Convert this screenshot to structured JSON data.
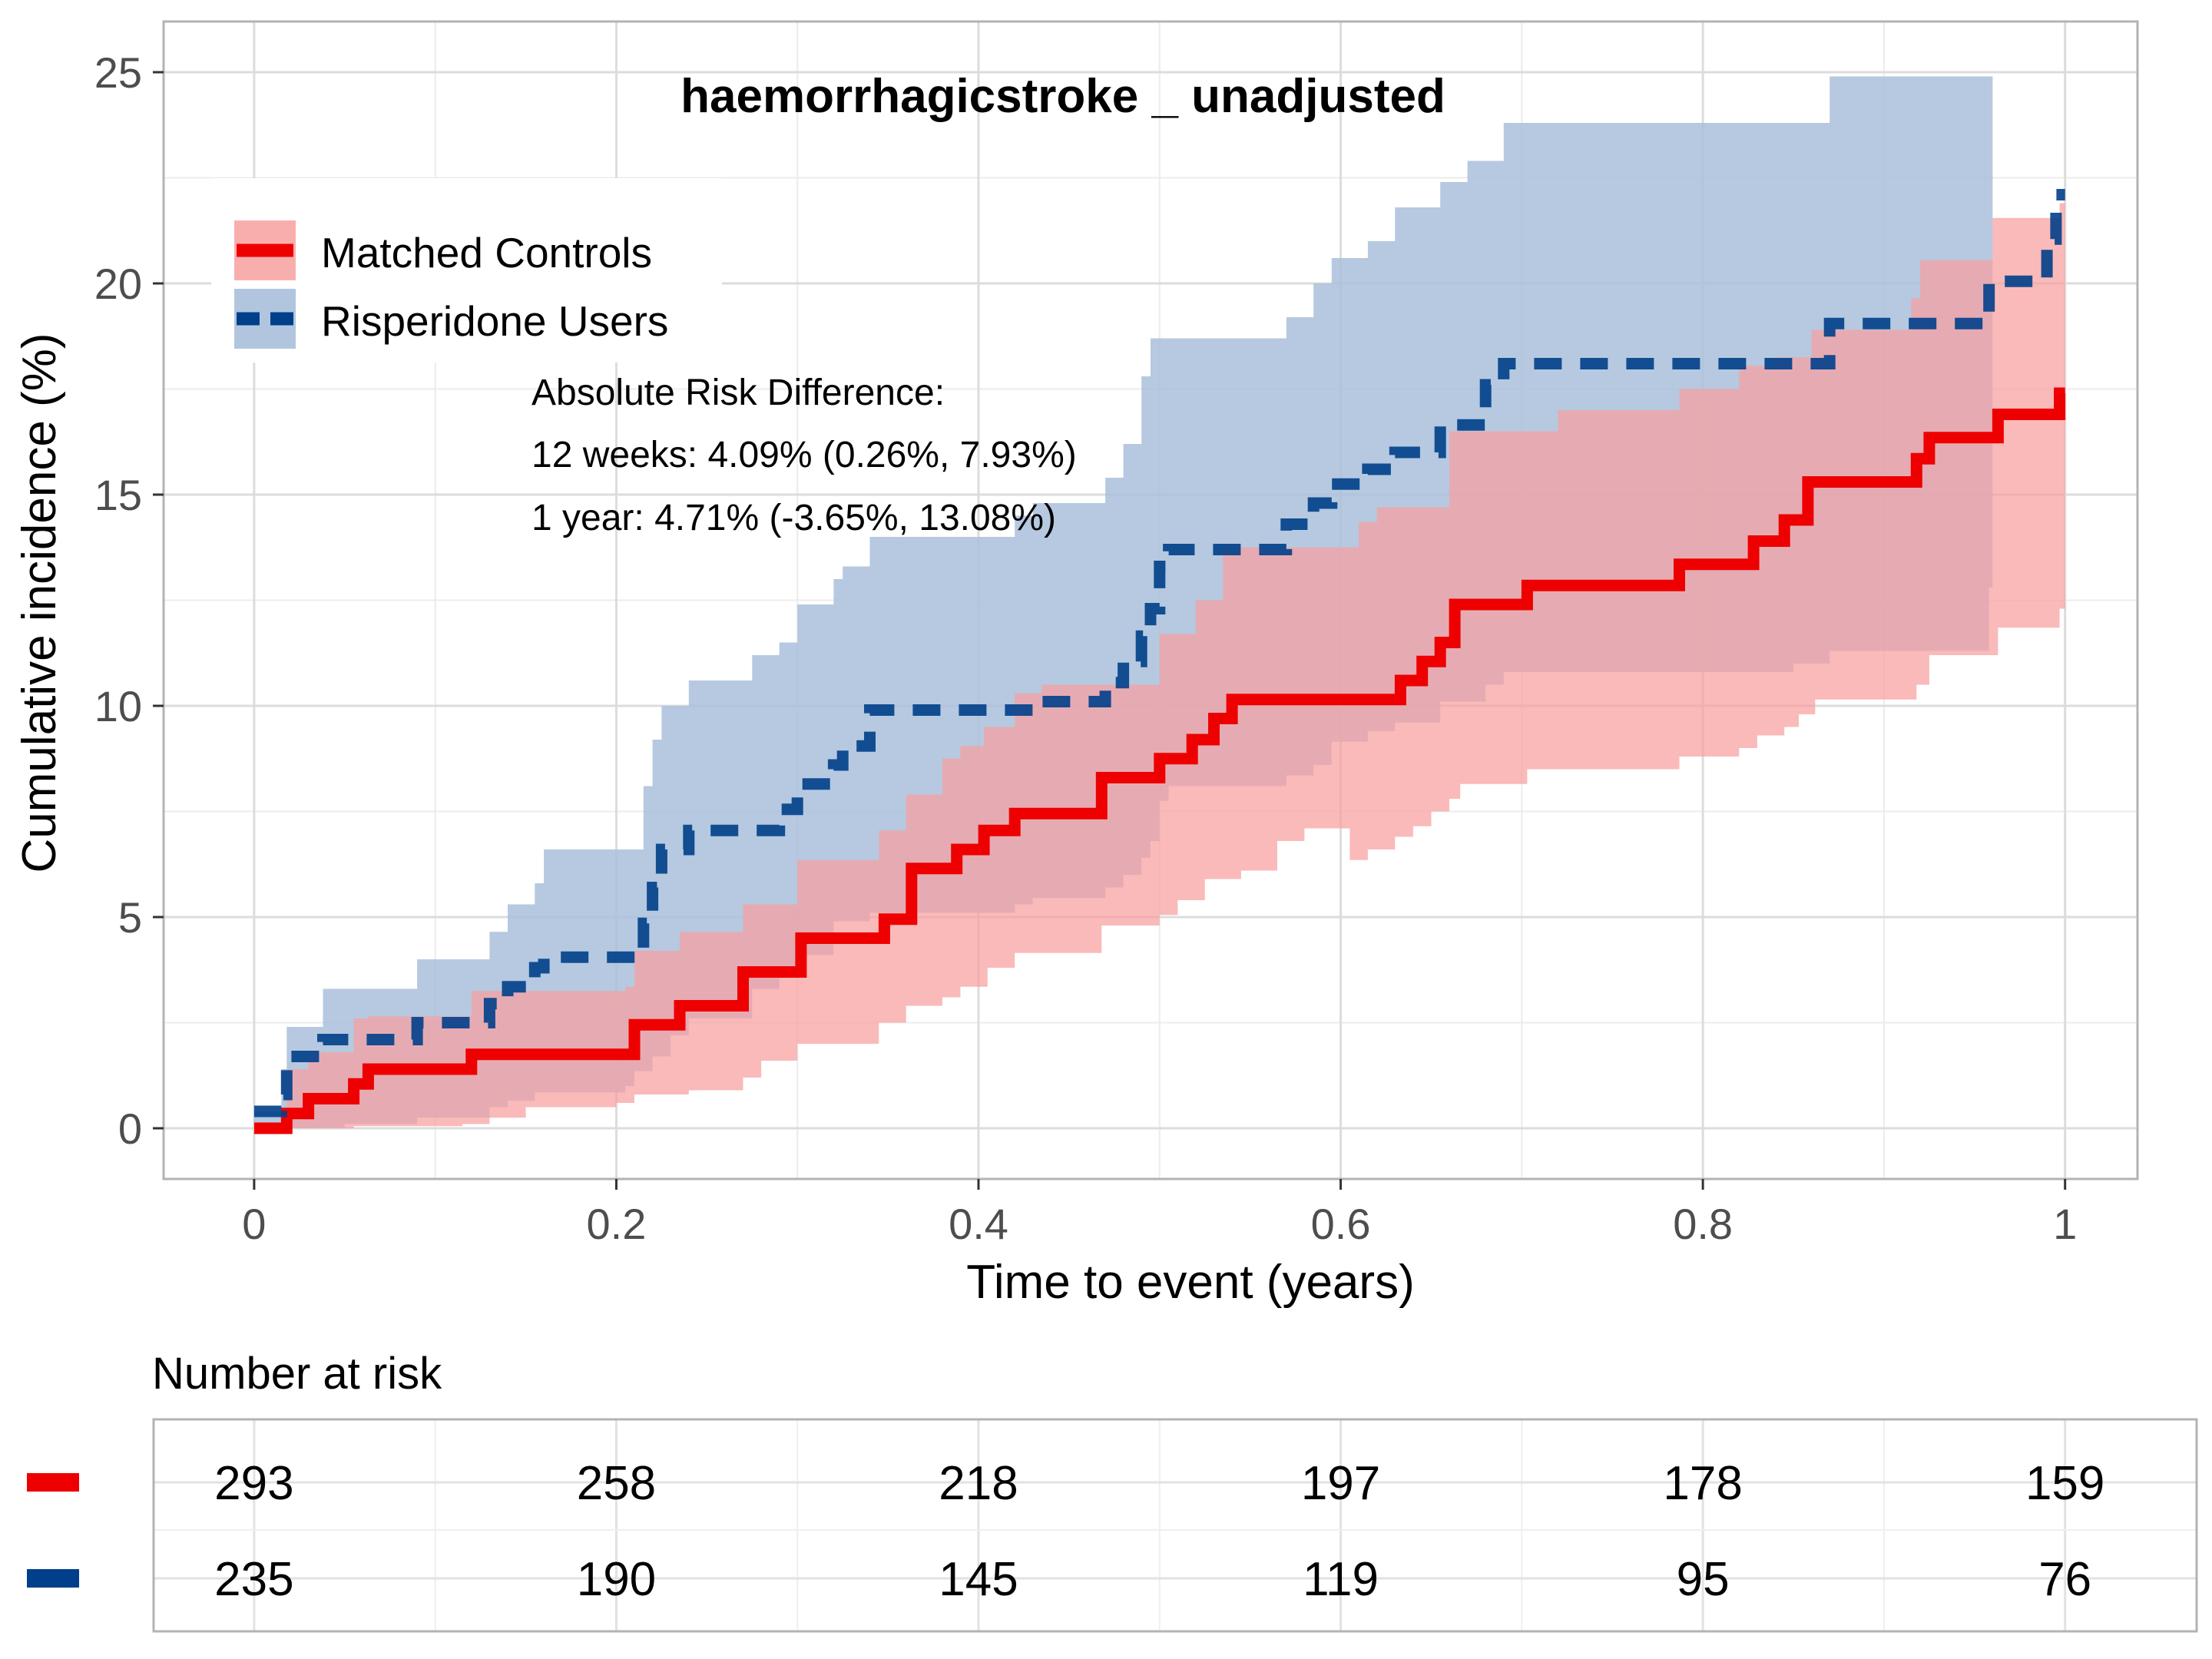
{
  "chart_data": {
    "type": "line",
    "title": "haemorrhagicstroke _ unadjusted",
    "xlabel": "Time to event (years)",
    "ylabel": "Cumulative incidence (%)",
    "xlim": [
      -0.05,
      1.04
    ],
    "ylim": [
      -1.2,
      26.2
    ],
    "x_ticks": [
      0,
      0.2,
      0.4,
      0.6,
      0.8,
      1
    ],
    "x_tick_labels": [
      "0",
      "0.2",
      "0.4",
      "0.6",
      "0.8",
      "1"
    ],
    "y_ticks": [
      0,
      5,
      10,
      15,
      20,
      25
    ],
    "y_tick_labels": [
      "0",
      "5",
      "10",
      "15",
      "20",
      "25"
    ],
    "grid": true,
    "legend_position": "top-left",
    "annotation": [
      "Absolute Risk Difference:",
      "12 weeks: 4.09% (0.26%, 7.93%)",
      "1 year: 4.71% (-3.65%, 13.08%)"
    ],
    "series": [
      {
        "name": "Matched Controls",
        "color": "#ee0000",
        "band_color": "#f8a0a0",
        "line_style": "solid",
        "steps": [
          [
            0,
            0
          ],
          [
            0.018,
            0.35
          ],
          [
            0.03,
            0.7
          ],
          [
            0.055,
            1.05
          ],
          [
            0.063,
            1.4
          ],
          [
            0.12,
            1.75
          ],
          [
            0.21,
            2.45
          ],
          [
            0.235,
            2.9
          ],
          [
            0.27,
            3.7
          ],
          [
            0.302,
            4.5
          ],
          [
            0.348,
            4.95
          ],
          [
            0.363,
            6.15
          ],
          [
            0.388,
            6.6
          ],
          [
            0.403,
            7.05
          ],
          [
            0.42,
            7.45
          ],
          [
            0.468,
            8.3
          ],
          [
            0.5,
            8.75
          ],
          [
            0.518,
            9.2
          ],
          [
            0.53,
            9.7
          ],
          [
            0.54,
            10.15
          ],
          [
            0.62,
            10.15
          ],
          [
            0.633,
            10.6
          ],
          [
            0.645,
            11.05
          ],
          [
            0.655,
            11.5
          ],
          [
            0.663,
            12.4
          ],
          [
            0.703,
            12.85
          ],
          [
            0.787,
            13.35
          ],
          [
            0.828,
            13.9
          ],
          [
            0.845,
            14.4
          ],
          [
            0.858,
            15.3
          ],
          [
            0.918,
            15.85
          ],
          [
            0.925,
            16.35
          ],
          [
            0.963,
            16.9
          ],
          [
            0.997,
            17.4
          ],
          [
            1.0,
            17.4
          ]
        ],
        "lower": [
          [
            0,
            0
          ],
          [
            0.04,
            0
          ],
          [
            0.055,
            0.05
          ],
          [
            0.115,
            0.1
          ],
          [
            0.13,
            0.25
          ],
          [
            0.15,
            0.5
          ],
          [
            0.2,
            0.6
          ],
          [
            0.21,
            0.8
          ],
          [
            0.24,
            0.9
          ],
          [
            0.27,
            1.2
          ],
          [
            0.28,
            1.6
          ],
          [
            0.3,
            2.0
          ],
          [
            0.345,
            2.5
          ],
          [
            0.36,
            2.9
          ],
          [
            0.38,
            3.1
          ],
          [
            0.39,
            3.35
          ],
          [
            0.405,
            3.8
          ],
          [
            0.42,
            4.15
          ],
          [
            0.468,
            4.8
          ],
          [
            0.5,
            5.05
          ],
          [
            0.51,
            5.4
          ],
          [
            0.525,
            5.9
          ],
          [
            0.545,
            6.1
          ],
          [
            0.565,
            6.8
          ],
          [
            0.58,
            7.1
          ],
          [
            0.605,
            6.35
          ],
          [
            0.615,
            6.6
          ],
          [
            0.63,
            6.9
          ],
          [
            0.64,
            7.15
          ],
          [
            0.65,
            7.5
          ],
          [
            0.66,
            7.8
          ],
          [
            0.666,
            8.15
          ],
          [
            0.703,
            8.5
          ],
          [
            0.787,
            8.8
          ],
          [
            0.82,
            9.0
          ],
          [
            0.83,
            9.3
          ],
          [
            0.845,
            9.5
          ],
          [
            0.853,
            9.8
          ],
          [
            0.862,
            10.15
          ],
          [
            0.918,
            10.5
          ],
          [
            0.925,
            11.2
          ],
          [
            0.963,
            11.85
          ],
          [
            0.997,
            12.3
          ],
          [
            1.0,
            12.3
          ]
        ],
        "upper": [
          [
            0,
            0
          ],
          [
            0.018,
            1.4
          ],
          [
            0.03,
            1.8
          ],
          [
            0.055,
            2.6
          ],
          [
            0.063,
            2.65
          ],
          [
            0.12,
            3.25
          ],
          [
            0.205,
            3.35
          ],
          [
            0.21,
            4.2
          ],
          [
            0.235,
            4.65
          ],
          [
            0.27,
            5.3
          ],
          [
            0.3,
            6.35
          ],
          [
            0.345,
            7.05
          ],
          [
            0.36,
            7.9
          ],
          [
            0.38,
            8.75
          ],
          [
            0.39,
            9.05
          ],
          [
            0.403,
            9.5
          ],
          [
            0.42,
            10.3
          ],
          [
            0.435,
            10.5
          ],
          [
            0.5,
            11.7
          ],
          [
            0.52,
            12.5
          ],
          [
            0.535,
            13.75
          ],
          [
            0.61,
            14.35
          ],
          [
            0.62,
            14.7
          ],
          [
            0.66,
            16.5
          ],
          [
            0.72,
            17.0
          ],
          [
            0.787,
            17.5
          ],
          [
            0.82,
            18.05
          ],
          [
            0.84,
            18.25
          ],
          [
            0.86,
            18.9
          ],
          [
            0.915,
            19.65
          ],
          [
            0.92,
            20.55
          ],
          [
            0.96,
            21.55
          ],
          [
            0.997,
            21.9
          ],
          [
            1.0,
            21.9
          ]
        ]
      },
      {
        "name": "Risperidone Users",
        "color": "#003f8a",
        "band_color": "#a9c0da",
        "line_style": "dashed",
        "steps": [
          [
            0,
            0.4
          ],
          [
            0.015,
            0.8
          ],
          [
            0.018,
            1.7
          ],
          [
            0.038,
            2.1
          ],
          [
            0.09,
            2.5
          ],
          [
            0.13,
            2.95
          ],
          [
            0.14,
            3.35
          ],
          [
            0.155,
            3.8
          ],
          [
            0.16,
            4.05
          ],
          [
            0.205,
            4.05
          ],
          [
            0.215,
            4.85
          ],
          [
            0.22,
            5.7
          ],
          [
            0.225,
            6.6
          ],
          [
            0.24,
            7.05
          ],
          [
            0.29,
            7.55
          ],
          [
            0.3,
            8.15
          ],
          [
            0.32,
            8.6
          ],
          [
            0.325,
            9.05
          ],
          [
            0.34,
            9.9
          ],
          [
            0.42,
            9.9
          ],
          [
            0.43,
            10.1
          ],
          [
            0.47,
            10.55
          ],
          [
            0.48,
            11.05
          ],
          [
            0.49,
            11.65
          ],
          [
            0.495,
            12.3
          ],
          [
            0.5,
            13.3
          ],
          [
            0.505,
            13.7
          ],
          [
            0.57,
            14.3
          ],
          [
            0.585,
            14.8
          ],
          [
            0.595,
            15.25
          ],
          [
            0.615,
            15.6
          ],
          [
            0.63,
            16.0
          ],
          [
            0.655,
            16.65
          ],
          [
            0.68,
            17.6
          ],
          [
            0.69,
            18.1
          ],
          [
            0.85,
            18.1
          ],
          [
            0.87,
            19.05
          ],
          [
            0.958,
            20.05
          ],
          [
            0.99,
            21.05
          ],
          [
            0.995,
            22.1
          ],
          [
            1.0,
            22.1
          ]
        ],
        "lower": [
          [
            0,
            0
          ],
          [
            0.04,
            0
          ],
          [
            0.05,
            0.1
          ],
          [
            0.09,
            0.25
          ],
          [
            0.13,
            0.5
          ],
          [
            0.14,
            0.65
          ],
          [
            0.155,
            0.85
          ],
          [
            0.205,
            1.0
          ],
          [
            0.21,
            1.35
          ],
          [
            0.22,
            1.7
          ],
          [
            0.23,
            2.2
          ],
          [
            0.24,
            2.6
          ],
          [
            0.275,
            3.3
          ],
          [
            0.29,
            3.7
          ],
          [
            0.3,
            4.1
          ],
          [
            0.32,
            4.9
          ],
          [
            0.34,
            5.1
          ],
          [
            0.42,
            5.3
          ],
          [
            0.43,
            5.45
          ],
          [
            0.47,
            5.7
          ],
          [
            0.48,
            6.0
          ],
          [
            0.49,
            6.4
          ],
          [
            0.495,
            6.8
          ],
          [
            0.5,
            7.75
          ],
          [
            0.505,
            8.1
          ],
          [
            0.57,
            8.35
          ],
          [
            0.585,
            8.6
          ],
          [
            0.595,
            9.15
          ],
          [
            0.615,
            9.4
          ],
          [
            0.63,
            9.6
          ],
          [
            0.655,
            10.1
          ],
          [
            0.68,
            10.5
          ],
          [
            0.69,
            10.8
          ],
          [
            0.85,
            11.0
          ],
          [
            0.87,
            11.3
          ],
          [
            0.958,
            12.8
          ],
          [
            0.96,
            12.8
          ]
        ],
        "upper": [
          [
            0,
            0.4
          ],
          [
            0.015,
            1.4
          ],
          [
            0.018,
            2.4
          ],
          [
            0.038,
            3.3
          ],
          [
            0.09,
            4.0
          ],
          [
            0.13,
            4.65
          ],
          [
            0.14,
            5.3
          ],
          [
            0.155,
            5.8
          ],
          [
            0.16,
            6.6
          ],
          [
            0.205,
            6.6
          ],
          [
            0.215,
            8.1
          ],
          [
            0.22,
            9.2
          ],
          [
            0.225,
            10.0
          ],
          [
            0.24,
            10.6
          ],
          [
            0.275,
            11.2
          ],
          [
            0.29,
            11.5
          ],
          [
            0.3,
            12.4
          ],
          [
            0.32,
            13.0
          ],
          [
            0.325,
            13.3
          ],
          [
            0.34,
            14.0
          ],
          [
            0.42,
            14.5
          ],
          [
            0.43,
            14.8
          ],
          [
            0.47,
            15.4
          ],
          [
            0.48,
            16.2
          ],
          [
            0.49,
            17.8
          ],
          [
            0.495,
            18.7
          ],
          [
            0.57,
            19.2
          ],
          [
            0.585,
            20.0
          ],
          [
            0.595,
            20.6
          ],
          [
            0.615,
            21.0
          ],
          [
            0.63,
            21.8
          ],
          [
            0.655,
            22.4
          ],
          [
            0.67,
            22.9
          ],
          [
            0.69,
            23.8
          ],
          [
            0.87,
            24.9
          ],
          [
            0.958,
            24.9
          ],
          [
            0.96,
            24.9
          ]
        ]
      }
    ]
  },
  "risk_table": {
    "title": "Number at risk",
    "x": [
      0,
      0.2,
      0.4,
      0.6,
      0.8,
      1
    ],
    "rows": [
      {
        "name": "Matched Controls",
        "color": "#ee0000",
        "values": [
          "293",
          "258",
          "218",
          "197",
          "178",
          "159"
        ]
      },
      {
        "name": "Risperidone Users",
        "color": "#003f8a",
        "values": [
          "235",
          "190",
          "145",
          "119",
          "95",
          "76"
        ]
      }
    ]
  }
}
